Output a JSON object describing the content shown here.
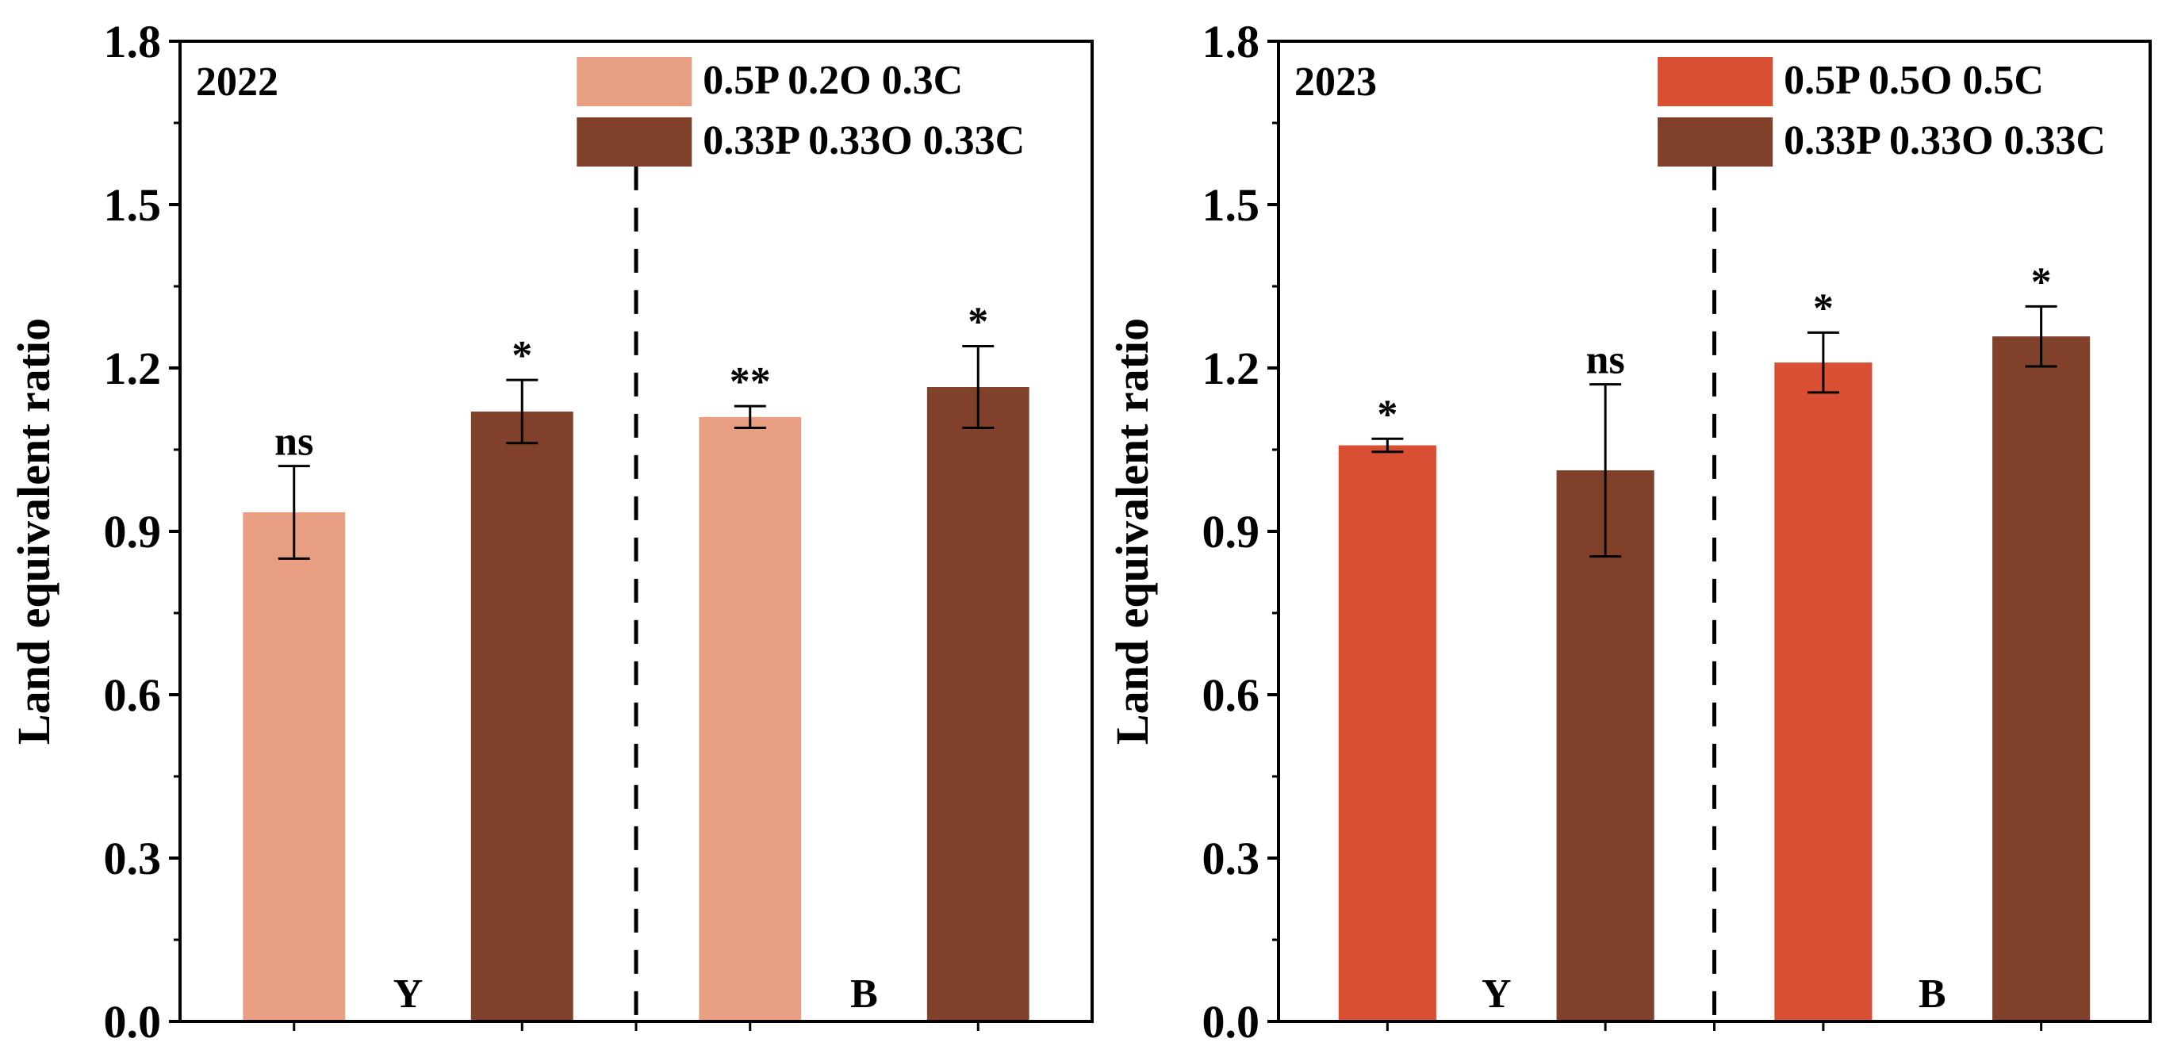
{
  "chart_data": [
    {
      "type": "bar",
      "title": "2022",
      "ylabel": "Land equivalent ratio",
      "xlabel": "",
      "ylim": [
        0,
        1.8
      ],
      "yticks": [
        "0.0",
        "0.3",
        "0.6",
        "0.9",
        "1.2",
        "1.5",
        "1.8"
      ],
      "grid": false,
      "legend_position": "top-right",
      "divider": "dashed vertical line between groups",
      "groups": [
        "Y",
        "B"
      ],
      "series": [
        {
          "name": "0.5P 0.2O 0.3C",
          "color": "#E89E80",
          "values": [
            0.935,
            1.11
          ],
          "errors": [
            0.085,
            0.02
          ],
          "significance": [
            "ns",
            "**"
          ]
        },
        {
          "name": "0.33P 0.33O 0.33C",
          "color": "#80402A",
          "values": [
            1.12,
            1.165
          ],
          "errors": [
            0.058,
            0.075
          ],
          "significance": [
            "*",
            "*"
          ]
        }
      ]
    },
    {
      "type": "bar",
      "title": "2023",
      "ylabel": "Land equivalent ratio",
      "xlabel": "",
      "ylim": [
        0,
        1.8
      ],
      "yticks": [
        "0.0",
        "0.3",
        "0.6",
        "0.9",
        "1.2",
        "1.5",
        "1.8"
      ],
      "grid": false,
      "legend_position": "top-right",
      "divider": "dashed vertical line between groups",
      "groups": [
        "Y",
        "B"
      ],
      "series": [
        {
          "name": "0.5P 0.5O 0.5C",
          "color": "#D94F33",
          "values": [
            1.058,
            1.21
          ],
          "errors": [
            0.012,
            0.055
          ],
          "significance": [
            "*",
            "*"
          ]
        },
        {
          "name": "0.33P 0.33O 0.33C",
          "color": "#80402A",
          "values": [
            1.012,
            1.258
          ],
          "errors": [
            0.158,
            0.055
          ],
          "significance": [
            "ns",
            "*"
          ]
        }
      ]
    }
  ]
}
